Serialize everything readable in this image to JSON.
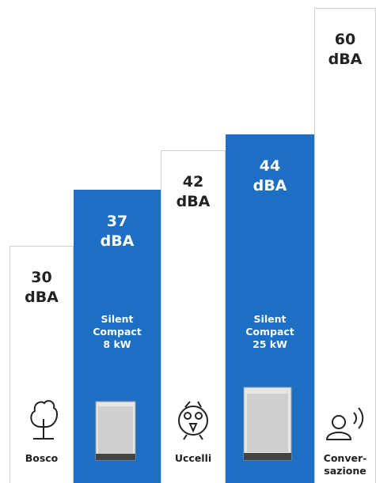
{
  "chart_data": {
    "type": "bar",
    "categories": [
      "Bosco",
      null,
      "Uccelli",
      null,
      "Conver-sazione"
    ],
    "values": [
      30,
      37,
      42,
      44,
      60
    ],
    "value_labels": [
      "30 dBA",
      "37 dBA",
      "42 dBA",
      "44 dBA",
      "60 dBA"
    ],
    "product_labels": [
      null,
      "Silent Compact 8 kW",
      null,
      "Silent Compact 25 kW",
      null
    ],
    "colors": [
      "#ffffff",
      "#1c6fc2",
      "#ffffff",
      "#1c6fc2",
      "#ffffff"
    ],
    "ylim": [
      0,
      60
    ]
  }
}
